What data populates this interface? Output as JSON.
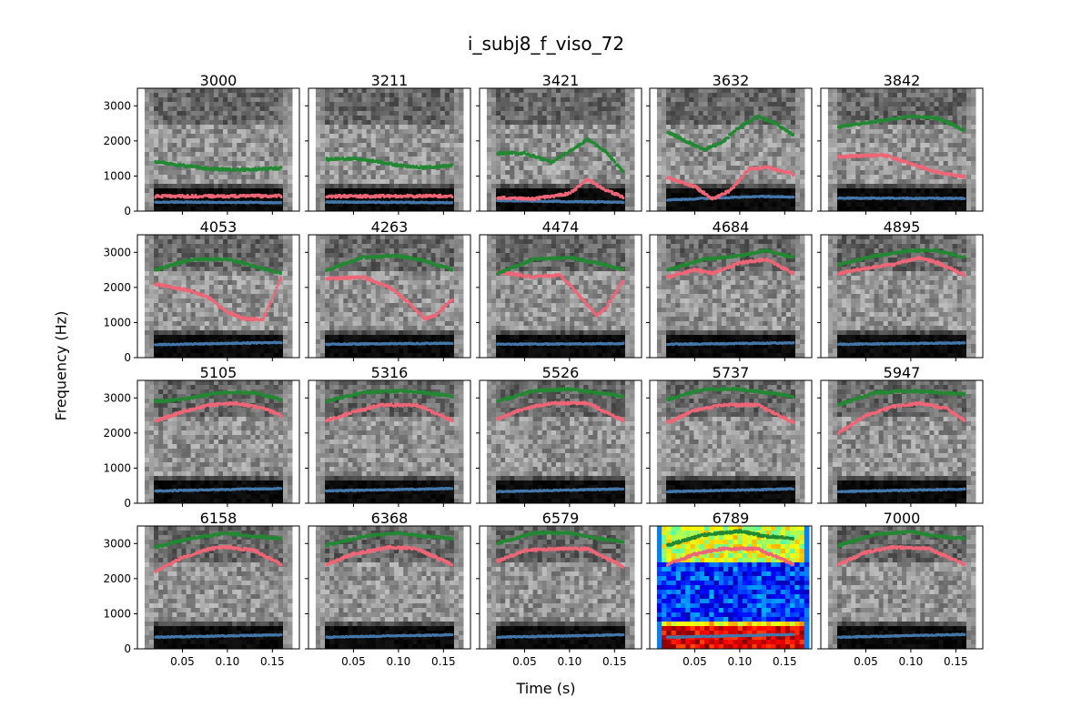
{
  "chart_data": {
    "type": "spectrogram-grid",
    "title": "i_subj8_f_viso_72",
    "xlabel": "Time (s)",
    "ylabel": "Frequency (Hz)",
    "xlim": [
      0.0,
      0.18
    ],
    "ylim": [
      0,
      3500
    ],
    "xticks": [
      0.05,
      0.1,
      0.15
    ],
    "xtick_labels": [
      "0.05",
      "0.10",
      "0.15"
    ],
    "yticks": [
      0,
      1000,
      2000,
      3000
    ],
    "ytick_labels": [
      "0",
      "1000",
      "2000",
      "3000"
    ],
    "rows": 4,
    "cols": 5,
    "colormap_default": "gray",
    "highlighted_panel": "6789",
    "highlighted_colormap": "jet",
    "series_colors": {
      "F1": "#4477aa",
      "F2": "#ee6677",
      "F3": "#228833"
    },
    "panels": [
      {
        "title": "3000",
        "f1": [
          [
            0.02,
            260
          ],
          [
            0.16,
            240
          ]
        ],
        "f2": [
          [
            0.02,
            420
          ],
          [
            0.16,
            430
          ]
        ],
        "f3": [
          [
            0.02,
            1400
          ],
          [
            0.05,
            1300
          ],
          [
            0.08,
            1200
          ],
          [
            0.12,
            1180
          ],
          [
            0.16,
            1220
          ]
        ]
      },
      {
        "title": "3211",
        "f1": [
          [
            0.02,
            260
          ],
          [
            0.16,
            240
          ]
        ],
        "f2": [
          [
            0.02,
            420
          ],
          [
            0.16,
            430
          ]
        ],
        "f3": [
          [
            0.02,
            1480
          ],
          [
            0.05,
            1500
          ],
          [
            0.08,
            1400
          ],
          [
            0.1,
            1300
          ],
          [
            0.13,
            1240
          ],
          [
            0.16,
            1300
          ]
        ]
      },
      {
        "title": "3421",
        "f1": [
          [
            0.02,
            300
          ],
          [
            0.16,
            250
          ]
        ],
        "f2": [
          [
            0.02,
            380
          ],
          [
            0.06,
            350
          ],
          [
            0.1,
            500
          ],
          [
            0.12,
            900
          ],
          [
            0.14,
            600
          ],
          [
            0.16,
            400
          ]
        ],
        "f3": [
          [
            0.02,
            1650
          ],
          [
            0.05,
            1650
          ],
          [
            0.08,
            1400
          ],
          [
            0.1,
            1700
          ],
          [
            0.12,
            2050
          ],
          [
            0.14,
            1700
          ],
          [
            0.16,
            1100
          ]
        ]
      },
      {
        "title": "3632",
        "f1": [
          [
            0.02,
            320
          ],
          [
            0.08,
            380
          ],
          [
            0.12,
            420
          ],
          [
            0.16,
            400
          ]
        ],
        "f2": [
          [
            0.02,
            950
          ],
          [
            0.05,
            700
          ],
          [
            0.07,
            350
          ],
          [
            0.09,
            600
          ],
          [
            0.11,
            1200
          ],
          [
            0.13,
            1250
          ],
          [
            0.16,
            1050
          ]
        ],
        "f3": [
          [
            0.02,
            2250
          ],
          [
            0.04,
            2000
          ],
          [
            0.06,
            1750
          ],
          [
            0.08,
            1950
          ],
          [
            0.1,
            2400
          ],
          [
            0.12,
            2700
          ],
          [
            0.14,
            2500
          ],
          [
            0.16,
            2150
          ]
        ]
      },
      {
        "title": "3842",
        "f1": [
          [
            0.02,
            370
          ],
          [
            0.16,
            360
          ]
        ],
        "f2": [
          [
            0.02,
            1550
          ],
          [
            0.07,
            1600
          ],
          [
            0.1,
            1350
          ],
          [
            0.13,
            1100
          ],
          [
            0.16,
            980
          ]
        ],
        "f3": [
          [
            0.02,
            2400
          ],
          [
            0.06,
            2550
          ],
          [
            0.1,
            2700
          ],
          [
            0.13,
            2650
          ],
          [
            0.16,
            2300
          ]
        ]
      },
      {
        "title": "4053",
        "f1": [
          [
            0.02,
            370
          ],
          [
            0.16,
            430
          ]
        ],
        "f2": [
          [
            0.02,
            2100
          ],
          [
            0.06,
            1900
          ],
          [
            0.08,
            1700
          ],
          [
            0.1,
            1300
          ],
          [
            0.12,
            1100
          ],
          [
            0.14,
            1100
          ],
          [
            0.16,
            2300
          ]
        ],
        "f3": [
          [
            0.02,
            2500
          ],
          [
            0.06,
            2800
          ],
          [
            0.1,
            2800
          ],
          [
            0.13,
            2600
          ],
          [
            0.16,
            2400
          ]
        ]
      },
      {
        "title": "4263",
        "f1": [
          [
            0.02,
            380
          ],
          [
            0.16,
            410
          ]
        ],
        "f2": [
          [
            0.02,
            2250
          ],
          [
            0.06,
            2300
          ],
          [
            0.09,
            2000
          ],
          [
            0.11,
            1600
          ],
          [
            0.13,
            1100
          ],
          [
            0.14,
            1200
          ],
          [
            0.16,
            1650
          ]
        ],
        "f3": [
          [
            0.02,
            2500
          ],
          [
            0.06,
            2850
          ],
          [
            0.1,
            2900
          ],
          [
            0.13,
            2750
          ],
          [
            0.16,
            2500
          ]
        ]
      },
      {
        "title": "4474",
        "f1": [
          [
            0.02,
            380
          ],
          [
            0.16,
            400
          ]
        ],
        "f2": [
          [
            0.02,
            2450
          ],
          [
            0.06,
            2300
          ],
          [
            0.09,
            2350
          ],
          [
            0.11,
            1800
          ],
          [
            0.13,
            1200
          ],
          [
            0.14,
            1400
          ],
          [
            0.16,
            2200
          ]
        ],
        "f3": [
          [
            0.02,
            2400
          ],
          [
            0.06,
            2800
          ],
          [
            0.1,
            2850
          ],
          [
            0.13,
            2700
          ],
          [
            0.16,
            2500
          ]
        ]
      },
      {
        "title": "4684",
        "f1": [
          [
            0.02,
            380
          ],
          [
            0.16,
            420
          ]
        ],
        "f2": [
          [
            0.02,
            2300
          ],
          [
            0.05,
            2500
          ],
          [
            0.07,
            2400
          ],
          [
            0.1,
            2700
          ],
          [
            0.13,
            2800
          ],
          [
            0.16,
            2400
          ]
        ],
        "f3": [
          [
            0.02,
            2500
          ],
          [
            0.06,
            2800
          ],
          [
            0.1,
            2900
          ],
          [
            0.13,
            3050
          ],
          [
            0.16,
            2850
          ]
        ]
      },
      {
        "title": "4895",
        "f1": [
          [
            0.02,
            380
          ],
          [
            0.16,
            420
          ]
        ],
        "f2": [
          [
            0.02,
            2400
          ],
          [
            0.05,
            2550
          ],
          [
            0.08,
            2650
          ],
          [
            0.11,
            2850
          ],
          [
            0.13,
            2700
          ],
          [
            0.16,
            2350
          ]
        ],
        "f3": [
          [
            0.02,
            2650
          ],
          [
            0.06,
            2900
          ],
          [
            0.1,
            3050
          ],
          [
            0.13,
            3050
          ],
          [
            0.16,
            2850
          ]
        ]
      },
      {
        "title": "5105",
        "f1": [
          [
            0.02,
            350
          ],
          [
            0.16,
            420
          ]
        ],
        "f2": [
          [
            0.02,
            2350
          ],
          [
            0.05,
            2600
          ],
          [
            0.08,
            2800
          ],
          [
            0.11,
            2850
          ],
          [
            0.14,
            2700
          ],
          [
            0.16,
            2500
          ]
        ],
        "f3": [
          [
            0.02,
            2900
          ],
          [
            0.05,
            2950
          ],
          [
            0.09,
            3150
          ],
          [
            0.13,
            3150
          ],
          [
            0.16,
            2950
          ]
        ]
      },
      {
        "title": "5316",
        "f1": [
          [
            0.02,
            350
          ],
          [
            0.16,
            420
          ]
        ],
        "f2": [
          [
            0.02,
            2350
          ],
          [
            0.05,
            2600
          ],
          [
            0.08,
            2800
          ],
          [
            0.12,
            2800
          ],
          [
            0.16,
            2350
          ]
        ],
        "f3": [
          [
            0.02,
            2900
          ],
          [
            0.06,
            3150
          ],
          [
            0.1,
            3200
          ],
          [
            0.13,
            3150
          ],
          [
            0.16,
            3050
          ]
        ]
      },
      {
        "title": "5526",
        "f1": [
          [
            0.02,
            330
          ],
          [
            0.16,
            410
          ]
        ],
        "f2": [
          [
            0.02,
            2400
          ],
          [
            0.05,
            2700
          ],
          [
            0.08,
            2850
          ],
          [
            0.12,
            2850
          ],
          [
            0.16,
            2350
          ]
        ],
        "f3": [
          [
            0.02,
            2900
          ],
          [
            0.06,
            3200
          ],
          [
            0.1,
            3250
          ],
          [
            0.13,
            3150
          ],
          [
            0.16,
            3050
          ]
        ]
      },
      {
        "title": "5737",
        "f1": [
          [
            0.02,
            330
          ],
          [
            0.16,
            410
          ]
        ],
        "f2": [
          [
            0.02,
            2300
          ],
          [
            0.05,
            2650
          ],
          [
            0.08,
            2800
          ],
          [
            0.12,
            2800
          ],
          [
            0.16,
            2300
          ]
        ],
        "f3": [
          [
            0.02,
            2950
          ],
          [
            0.06,
            3250
          ],
          [
            0.1,
            3250
          ],
          [
            0.13,
            3150
          ],
          [
            0.16,
            3050
          ]
        ]
      },
      {
        "title": "5947",
        "f1": [
          [
            0.02,
            330
          ],
          [
            0.16,
            400
          ]
        ],
        "f2": [
          [
            0.02,
            2000
          ],
          [
            0.05,
            2500
          ],
          [
            0.08,
            2750
          ],
          [
            0.11,
            2850
          ],
          [
            0.14,
            2700
          ],
          [
            0.16,
            2350
          ]
        ],
        "f3": [
          [
            0.02,
            2800
          ],
          [
            0.06,
            3150
          ],
          [
            0.1,
            3200
          ],
          [
            0.13,
            3150
          ],
          [
            0.16,
            3100
          ]
        ]
      },
      {
        "title": "6158",
        "f1": [
          [
            0.02,
            330
          ],
          [
            0.16,
            400
          ]
        ],
        "f2": [
          [
            0.02,
            2200
          ],
          [
            0.05,
            2600
          ],
          [
            0.08,
            2850
          ],
          [
            0.1,
            2900
          ],
          [
            0.13,
            2800
          ],
          [
            0.16,
            2400
          ]
        ],
        "f3": [
          [
            0.02,
            2900
          ],
          [
            0.06,
            3150
          ],
          [
            0.1,
            3300
          ],
          [
            0.13,
            3200
          ],
          [
            0.16,
            3150
          ]
        ]
      },
      {
        "title": "6368",
        "f1": [
          [
            0.02,
            330
          ],
          [
            0.16,
            400
          ]
        ],
        "f2": [
          [
            0.02,
            2400
          ],
          [
            0.05,
            2700
          ],
          [
            0.09,
            2900
          ],
          [
            0.12,
            2850
          ],
          [
            0.16,
            2400
          ]
        ],
        "f3": [
          [
            0.02,
            2950
          ],
          [
            0.06,
            3200
          ],
          [
            0.1,
            3300
          ],
          [
            0.13,
            3200
          ],
          [
            0.16,
            3150
          ]
        ]
      },
      {
        "title": "6579",
        "f1": [
          [
            0.02,
            330
          ],
          [
            0.16,
            400
          ]
        ],
        "f2": [
          [
            0.02,
            2500
          ],
          [
            0.05,
            2800
          ],
          [
            0.08,
            2850
          ],
          [
            0.12,
            2850
          ],
          [
            0.16,
            2350
          ]
        ],
        "f3": [
          [
            0.02,
            3000
          ],
          [
            0.06,
            3300
          ],
          [
            0.1,
            3300
          ],
          [
            0.13,
            3150
          ],
          [
            0.16,
            3050
          ]
        ]
      },
      {
        "title": "6789",
        "f1": [
          [
            0.02,
            330
          ],
          [
            0.16,
            410
          ]
        ],
        "f2": [
          [
            0.02,
            2400
          ],
          [
            0.05,
            2700
          ],
          [
            0.08,
            2850
          ],
          [
            0.12,
            2850
          ],
          [
            0.16,
            2400
          ]
        ],
        "f3": [
          [
            0.02,
            2950
          ],
          [
            0.06,
            3250
          ],
          [
            0.1,
            3350
          ],
          [
            0.13,
            3200
          ],
          [
            0.16,
            3150
          ]
        ]
      },
      {
        "title": "7000",
        "f1": [
          [
            0.02,
            330
          ],
          [
            0.16,
            410
          ]
        ],
        "f2": [
          [
            0.02,
            2400
          ],
          [
            0.05,
            2750
          ],
          [
            0.08,
            2900
          ],
          [
            0.12,
            2850
          ],
          [
            0.16,
            2400
          ]
        ],
        "f3": [
          [
            0.02,
            2950
          ],
          [
            0.06,
            3250
          ],
          [
            0.1,
            3350
          ],
          [
            0.13,
            3200
          ],
          [
            0.16,
            3150
          ]
        ]
      }
    ]
  }
}
